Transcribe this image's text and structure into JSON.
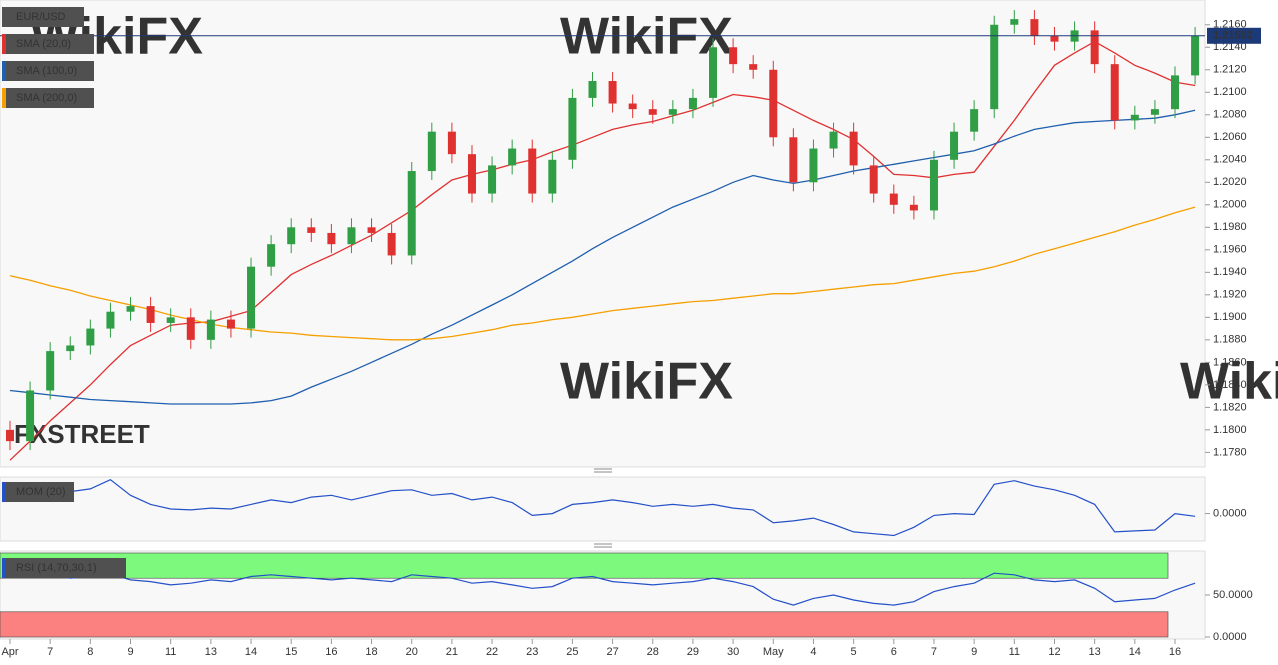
{
  "chart_data": [
    {
      "type": "candlestick",
      "title": "EUR/USD",
      "categories": [
        "Apr",
        null,
        "7",
        null,
        "8",
        null,
        "9",
        null,
        "11",
        null,
        "13",
        null,
        "14",
        null,
        "15",
        null,
        "16",
        null,
        "18",
        null,
        "20",
        null,
        "21",
        null,
        "22",
        null,
        "23",
        null,
        "25",
        null,
        "27",
        null,
        "28",
        null,
        "29",
        null,
        "30",
        null,
        "May",
        null,
        "4",
        null,
        "5",
        null,
        "6",
        null,
        "7",
        null,
        "9",
        null,
        "11",
        null,
        "12",
        null,
        "13",
        null,
        "14",
        null,
        "16",
        null
      ],
      "open": [
        1.18,
        1.179,
        1.1835,
        1.187,
        1.1875,
        1.189,
        1.1905,
        1.191,
        1.1895,
        1.19,
        1.188,
        1.1898,
        1.189,
        1.1945,
        1.1965,
        1.198,
        1.1975,
        1.1965,
        1.198,
        1.1975,
        1.1955,
        1.203,
        1.2065,
        1.2045,
        1.201,
        1.2035,
        1.205,
        1.201,
        1.204,
        1.2095,
        1.211,
        1.209,
        1.2085,
        1.208,
        1.2085,
        1.2095,
        1.214,
        1.2125,
        1.212,
        1.206,
        1.202,
        1.205,
        1.2065,
        1.2035,
        1.201,
        1.2,
        1.1995,
        1.204,
        1.2065,
        1.2085,
        1.216,
        1.2165,
        1.215,
        1.2145,
        1.2155,
        1.2125,
        1.2075,
        1.208,
        1.2085,
        1.2115
      ],
      "high": [
        1.1808,
        1.1843,
        1.1878,
        1.1883,
        1.1898,
        1.1913,
        1.1918,
        1.1918,
        1.1908,
        1.1908,
        1.1906,
        1.1906,
        1.1953,
        1.1973,
        1.1988,
        1.1988,
        1.1983,
        1.1988,
        1.1988,
        1.1983,
        1.2038,
        1.2073,
        1.2073,
        1.2053,
        1.2043,
        1.2058,
        1.2058,
        1.2048,
        1.2103,
        1.2118,
        1.2118,
        1.2098,
        1.2093,
        1.2093,
        1.2103,
        1.2148,
        1.2148,
        1.2133,
        1.2128,
        1.2068,
        1.2058,
        1.2073,
        1.2073,
        1.2043,
        1.2018,
        1.2008,
        1.2048,
        1.2073,
        1.2093,
        1.2168,
        1.2173,
        1.2173,
        1.2158,
        1.2163,
        1.2163,
        1.2133,
        1.2088,
        1.2093,
        1.2123,
        1.2158
      ],
      "low": [
        1.1782,
        1.1782,
        1.1827,
        1.1862,
        1.1867,
        1.1882,
        1.1897,
        1.1887,
        1.1887,
        1.1872,
        1.1872,
        1.1882,
        1.1882,
        1.1937,
        1.1957,
        1.1967,
        1.1957,
        1.1957,
        1.1967,
        1.1947,
        1.1947,
        1.2022,
        1.2037,
        1.2002,
        1.2002,
        1.2027,
        1.2002,
        1.2002,
        1.2032,
        1.2087,
        1.2082,
        1.2077,
        1.2072,
        1.2072,
        1.2077,
        1.2087,
        1.2117,
        1.2112,
        1.2052,
        1.2012,
        1.2012,
        1.2042,
        1.2027,
        1.2002,
        1.1992,
        1.1987,
        1.1987,
        1.2032,
        1.2057,
        1.2077,
        1.2152,
        1.2142,
        1.2137,
        1.2137,
        1.2117,
        1.2067,
        1.2067,
        1.2072,
        1.2077,
        1.2107
      ],
      "close": [
        1.179,
        1.1835,
        1.187,
        1.1875,
        1.189,
        1.1905,
        1.191,
        1.1895,
        1.19,
        1.188,
        1.1898,
        1.189,
        1.1945,
        1.1965,
        1.198,
        1.1975,
        1.1965,
        1.198,
        1.1975,
        1.1955,
        1.203,
        1.2065,
        1.2045,
        1.201,
        1.2035,
        1.205,
        1.201,
        1.204,
        1.2095,
        1.211,
        1.209,
        1.2085,
        1.208,
        1.2085,
        1.2095,
        1.214,
        1.2125,
        1.212,
        1.206,
        1.202,
        1.205,
        1.2065,
        1.2035,
        1.201,
        1.2,
        1.1995,
        1.204,
        1.2065,
        1.2085,
        1.216,
        1.2165,
        1.215,
        1.2145,
        1.2155,
        1.2125,
        1.2075,
        1.208,
        1.2085,
        1.2115,
        1.215
      ],
      "up_color": "#2f9e44",
      "down_color": "#e03131",
      "ylim": [
        1.1767,
        1.2182
      ],
      "yticks": [
        {
          "value": 1.178,
          "label": "1.1780"
        },
        {
          "value": 1.18,
          "label": "1.1800"
        },
        {
          "value": 1.182,
          "label": "1.1820"
        },
        {
          "value": 1.184,
          "label": "1.1840"
        },
        {
          "value": 1.186,
          "label": "1.1860"
        },
        {
          "value": 1.188,
          "label": "1.1880"
        },
        {
          "value": 1.19,
          "label": "1.1900"
        },
        {
          "value": 1.192,
          "label": "1.1920"
        },
        {
          "value": 1.194,
          "label": "1.1940"
        },
        {
          "value": 1.196,
          "label": "1.1960"
        },
        {
          "value": 1.198,
          "label": "1.1980"
        },
        {
          "value": 1.2,
          "label": "1.2000"
        },
        {
          "value": 1.202,
          "label": "1.2020"
        },
        {
          "value": 1.204,
          "label": "1.2040"
        },
        {
          "value": 1.206,
          "label": "1.2060"
        },
        {
          "value": 1.208,
          "label": "1.2080"
        },
        {
          "value": 1.21,
          "label": "1.2100"
        },
        {
          "value": 1.212,
          "label": "1.2120"
        },
        {
          "value": 1.214,
          "label": "1.2140"
        },
        {
          "value": 1.216,
          "label": "1.2160"
        }
      ],
      "last_price": 1.21502,
      "last_price_color": "#1c3a78",
      "series": [
        {
          "name": "SMA (20,0)",
          "color": "#e03131",
          "values": [
            1.1773,
            1.179,
            1.1808,
            1.1824,
            1.184,
            1.1858,
            1.1875,
            1.1884,
            1.1893,
            1.1895,
            1.1896,
            1.1901,
            1.1906,
            1.1922,
            1.1938,
            1.1947,
            1.1955,
            1.1964,
            1.1973,
            1.1984,
            1.1995,
            1.2009,
            1.2022,
            1.2027,
            1.2031,
            1.2036,
            1.204,
            1.2047,
            1.2053,
            1.206,
            1.2067,
            1.2071,
            1.2074,
            1.2079,
            1.2084,
            1.2091,
            1.2098,
            1.2096,
            1.2093,
            1.2084,
            1.2075,
            1.2067,
            1.2058,
            1.2043,
            1.2027,
            1.2026,
            1.2024,
            1.2027,
            1.2029,
            1.2052,
            1.2075,
            1.21,
            1.2124,
            1.2135,
            1.2145,
            1.2135,
            1.2124,
            1.2117,
            1.2109,
            1.2106
          ]
        },
        {
          "name": "SMA (100,0)",
          "color": "#1f5fae",
          "values": [
            1.1835,
            1.1833,
            1.1831,
            1.1829,
            1.1827,
            1.1826,
            1.1825,
            1.1824,
            1.1823,
            1.1823,
            1.1823,
            1.1823,
            1.1824,
            1.1826,
            1.183,
            1.1838,
            1.1845,
            1.1852,
            1.186,
            1.1868,
            1.1876,
            1.1885,
            1.1893,
            1.1902,
            1.1911,
            1.192,
            1.193,
            1.194,
            1.195,
            1.1961,
            1.1971,
            1.198,
            1.1989,
            1.1998,
            1.2005,
            1.2012,
            1.202,
            1.2026,
            1.2022,
            1.2019,
            1.2022,
            1.2026,
            1.203,
            1.2033,
            1.2036,
            1.2039,
            1.2042,
            1.2045,
            1.2048,
            1.2054,
            1.2061,
            1.2067,
            1.207,
            1.2073,
            1.2074,
            1.2075,
            1.2076,
            1.2077,
            1.208,
            1.2084
          ]
        },
        {
          "name": "SMA (200,0)",
          "color": "#f59f00",
          "values": [
            1.1937,
            1.1933,
            1.1928,
            1.1924,
            1.1919,
            1.1915,
            1.1911,
            1.1907,
            1.1902,
            1.1898,
            1.1894,
            1.1891,
            1.1889,
            1.1887,
            1.1886,
            1.1884,
            1.1883,
            1.1882,
            1.1881,
            1.188,
            1.188,
            1.1881,
            1.1883,
            1.1886,
            1.1889,
            1.1893,
            1.1895,
            1.1898,
            1.19,
            1.1903,
            1.1906,
            1.1908,
            1.191,
            1.1912,
            1.1914,
            1.1915,
            1.1917,
            1.1919,
            1.1921,
            1.1921,
            1.1923,
            1.1925,
            1.1927,
            1.1929,
            1.193,
            1.1933,
            1.1936,
            1.1939,
            1.1941,
            1.1945,
            1.195,
            1.1956,
            1.1961,
            1.1966,
            1.1971,
            1.1976,
            1.1982,
            1.1987,
            1.1993,
            1.1998
          ]
        }
      ],
      "watermark": "WikiFX",
      "logo": "FXSTREET"
    },
    {
      "type": "line",
      "title": "MOM (20)",
      "color": "#2450c8",
      "values": [
        0.0025,
        0.0022,
        0.0026,
        0.0024,
        0.0027,
        0.0037,
        0.002,
        0.001,
        0.0005,
        0.0004,
        0.0006,
        0.0005,
        0.001,
        0.0015,
        0.0012,
        0.0018,
        0.002,
        0.0015,
        0.002,
        0.0025,
        0.0026,
        0.002,
        0.0022,
        0.0015,
        0.0018,
        0.0012,
        -0.0002,
        0,
        0.001,
        0.0012,
        0.0015,
        0.0012,
        0.0008,
        0.001,
        0.0008,
        0.001,
        0.0006,
        0.0004,
        -0.001,
        -0.0008,
        -0.0005,
        -0.0012,
        -0.002,
        -0.0022,
        -0.0024,
        -0.0015,
        -0.0002,
        0,
        -0.0001,
        0.0032,
        0.0036,
        0.003,
        0.0026,
        0.002,
        0.001,
        -0.002,
        -0.0019,
        -0.0018,
        0,
        -0.0003
      ],
      "ylim": [
        -0.003,
        0.004
      ],
      "yticks": [
        {
          "value": 0,
          "label": "0.0000"
        }
      ]
    },
    {
      "type": "line",
      "title": "RSI (14,70,30,1)",
      "color": "#2450c8",
      "values": [
        80,
        72,
        74,
        70,
        72,
        75,
        68,
        66,
        62,
        64,
        68,
        66,
        72,
        74,
        72,
        70,
        68,
        70,
        68,
        66,
        74,
        72,
        70,
        64,
        66,
        62,
        58,
        60,
        70,
        72,
        66,
        64,
        62,
        64,
        66,
        70,
        66,
        60,
        45,
        38,
        46,
        50,
        44,
        40,
        38,
        42,
        54,
        60,
        64,
        76,
        74,
        68,
        66,
        68,
        58,
        42,
        44,
        46,
        56,
        64
      ],
      "ylim": [
        0,
        100
      ],
      "yticks": [
        {
          "value": 0,
          "label": "0.0000"
        },
        {
          "value": 50,
          "label": "50.0000"
        }
      ],
      "bands": [
        {
          "from": 70,
          "to": 100,
          "color": "#7dfa7d"
        },
        {
          "from": 0,
          "to": 30,
          "color": "#fb8080"
        }
      ]
    }
  ]
}
